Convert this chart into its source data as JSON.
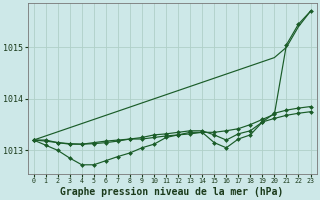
{
  "background_color": "#cde8e8",
  "grid_color": "#b0d0c8",
  "line_color": "#1a5c28",
  "title": "Graphe pression niveau de la mer (hPa)",
  "title_fontsize": 7.0,
  "x_labels": [
    "0",
    "1",
    "2",
    "3",
    "4",
    "5",
    "6",
    "7",
    "8",
    "9",
    "10",
    "11",
    "12",
    "13",
    "14",
    "15",
    "16",
    "17",
    "18",
    "19",
    "20",
    "21",
    "22",
    "23"
  ],
  "ylim": [
    1012.55,
    1015.85
  ],
  "yticks": [
    1013,
    1014,
    1015
  ],
  "series": {
    "line_straight": [
      1013.2,
      1013.28,
      1013.36,
      1013.44,
      1013.52,
      1013.6,
      1013.68,
      1013.76,
      1013.84,
      1013.92,
      1014.0,
      1014.08,
      1014.16,
      1014.24,
      1014.32,
      1014.4,
      1014.48,
      1014.56,
      1014.64,
      1014.72,
      1014.8,
      1015.0,
      1015.4,
      1015.7
    ],
    "line_top": [
      1013.2,
      1013.2,
      1013.15,
      1013.12,
      1013.12,
      1013.15,
      1013.18,
      1013.2,
      1013.22,
      1013.22,
      1013.25,
      1013.28,
      1013.3,
      1013.32,
      1013.35,
      1013.35,
      1013.38,
      1013.42,
      1013.5,
      1013.6,
      1013.7,
      1015.05,
      1015.45,
      1015.7
    ],
    "line_mid": [
      1013.2,
      1013.18,
      1013.15,
      1013.13,
      1013.12,
      1013.13,
      1013.15,
      1013.18,
      1013.22,
      1013.25,
      1013.3,
      1013.32,
      1013.35,
      1013.38,
      1013.38,
      1013.3,
      1013.2,
      1013.32,
      1013.38,
      1013.55,
      1013.62,
      1013.68,
      1013.72,
      1013.75
    ],
    "line_low": [
      1013.2,
      1013.1,
      1013.0,
      1012.85,
      1012.72,
      1012.72,
      1012.8,
      1012.88,
      1012.95,
      1013.05,
      1013.12,
      1013.25,
      1013.3,
      1013.35,
      1013.35,
      1013.15,
      1013.05,
      1013.22,
      1013.3,
      1013.55,
      1013.72,
      1013.78,
      1013.82,
      1013.85
    ]
  }
}
